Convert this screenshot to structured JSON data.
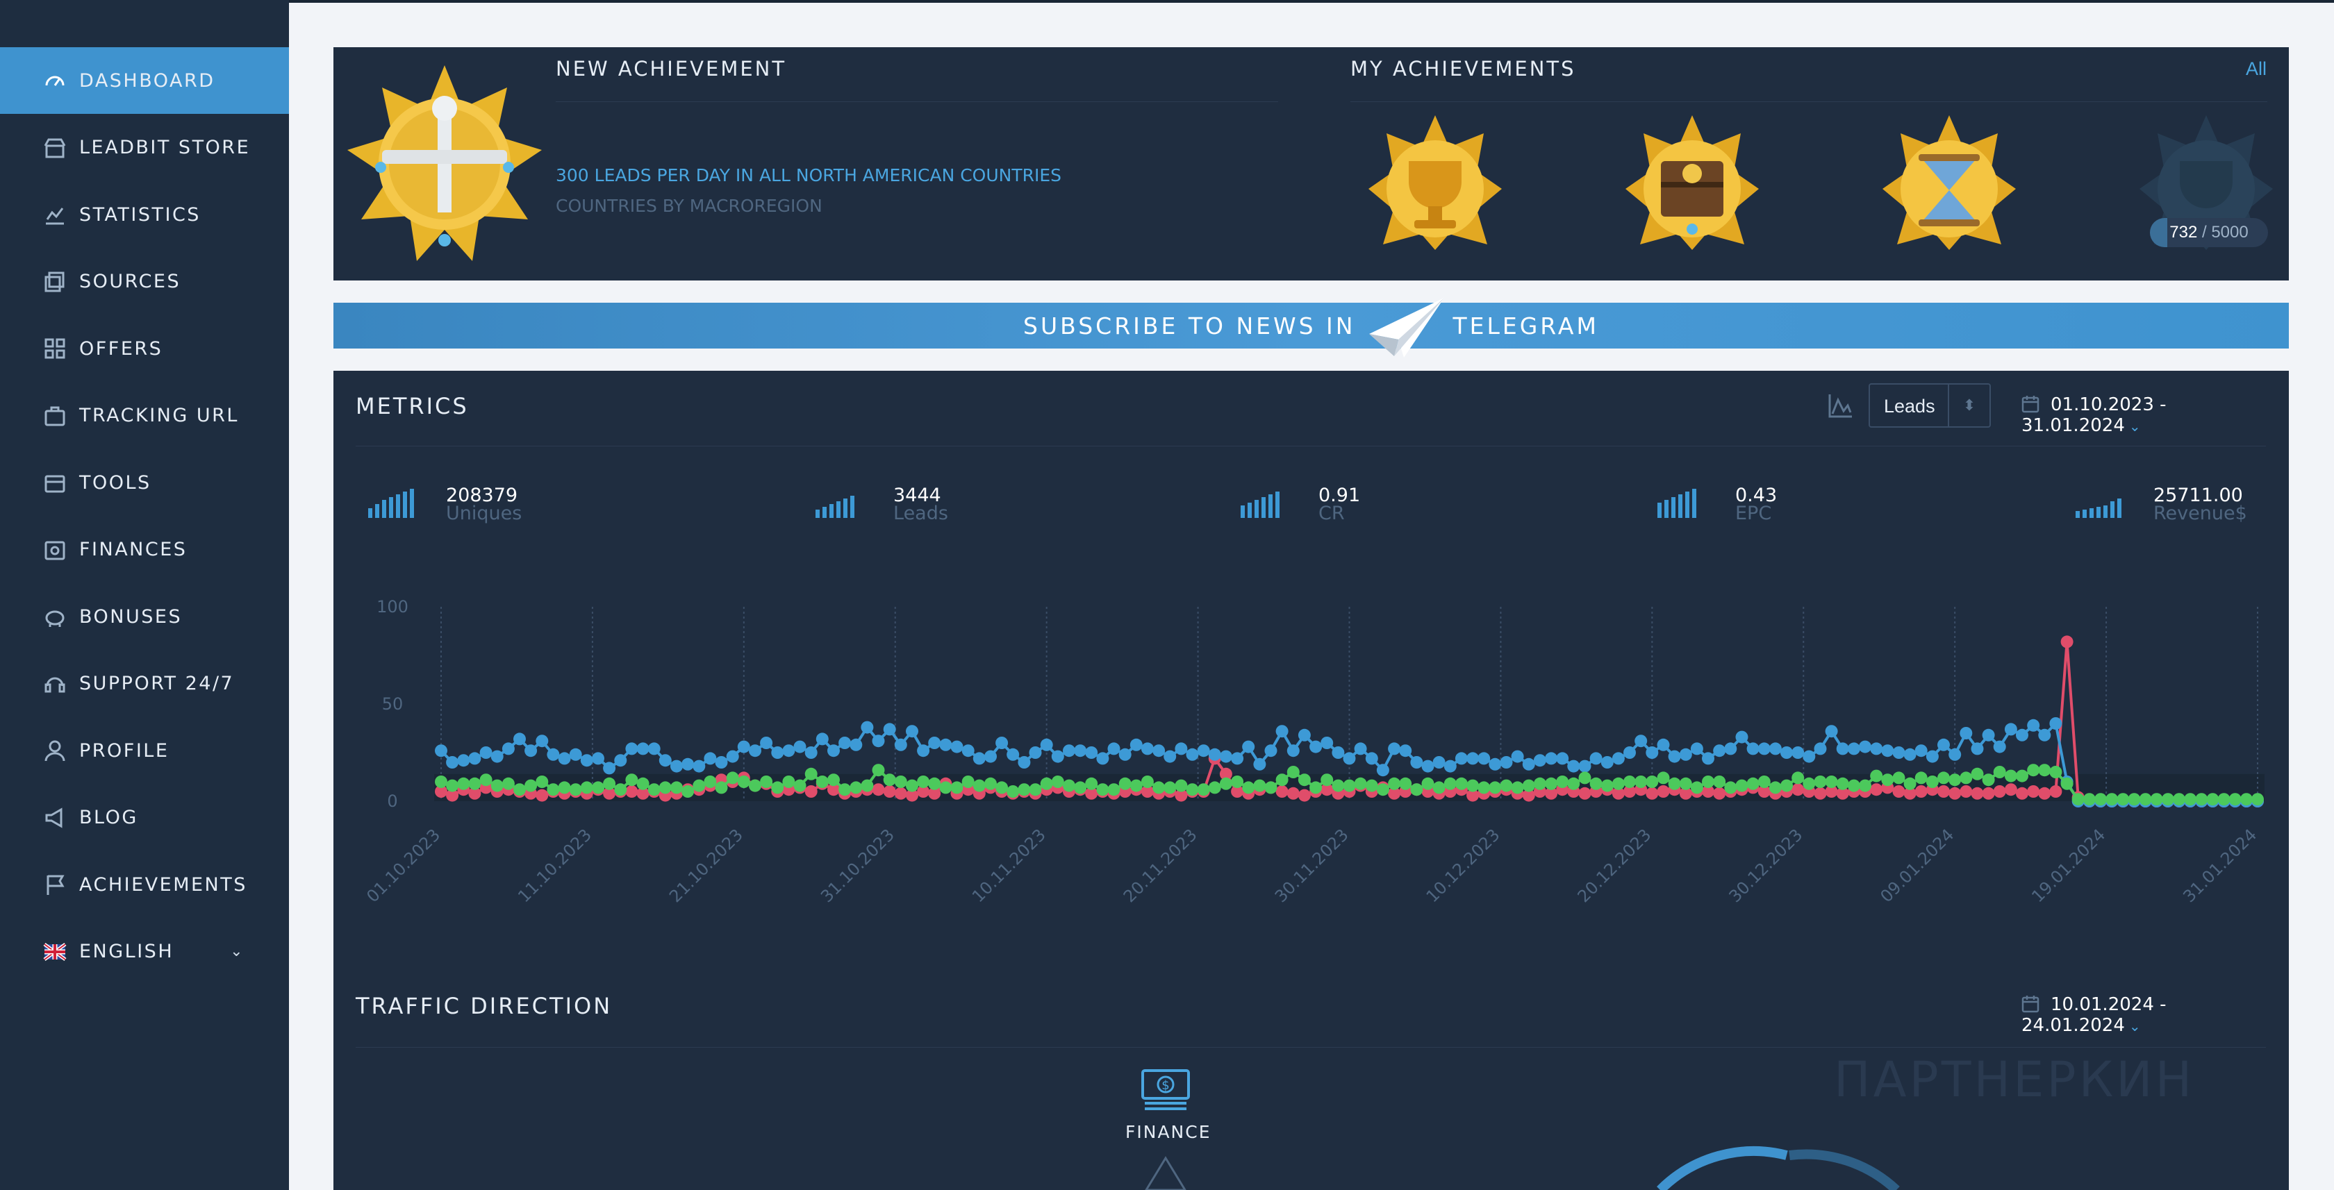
{
  "sidebar": {
    "items": [
      {
        "label": "DASHBOARD",
        "icon": "gauge-icon",
        "active": true
      },
      {
        "label": "LEADBIT STORE",
        "icon": "store-icon"
      },
      {
        "label": "STATISTICS",
        "icon": "chart-line-icon"
      },
      {
        "label": "SOURCES",
        "icon": "layers-icon"
      },
      {
        "label": "OFFERS",
        "icon": "grid-icon"
      },
      {
        "label": "TRACKING URL",
        "icon": "briefcase-icon"
      },
      {
        "label": "TOOLS",
        "icon": "toolbox-icon"
      },
      {
        "label": "FINANCES",
        "icon": "wallet-icon"
      },
      {
        "label": "BONUSES",
        "icon": "piggy-bank-icon"
      },
      {
        "label": "SUPPORT 24/7",
        "icon": "support-icon"
      },
      {
        "label": "PROFILE",
        "icon": "user-icon"
      },
      {
        "label": "BLOG",
        "icon": "megaphone-icon"
      },
      {
        "label": "ACHIEVEMENTS",
        "icon": "flag-icon"
      },
      {
        "label": "ENGLISH",
        "icon": "uk-flag-icon"
      }
    ]
  },
  "achievements": {
    "new_title": "NEW ACHIEVEMENT",
    "new_desc": "300 LEADS PER DAY IN ALL NORTH AMERICAN COUNTRIES",
    "new_sub": "COUNTRIES BY MACROREGION",
    "my_title": "MY ACHIEVEMENTS",
    "all_link": "All",
    "progress_current": "732",
    "progress_sep": " / ",
    "progress_total": "5000",
    "progress_fraction": 0.1464
  },
  "telegram": {
    "left": "SUBSCRIBE TO NEWS IN",
    "right": "TELEGRAM"
  },
  "metrics": {
    "title": "METRICS",
    "selector_value": "Leads",
    "date_range": "01.10.2023 - 31.01.2024",
    "stats": [
      {
        "value": "208379",
        "label": "Uniques"
      },
      {
        "value": "3444",
        "label": "Leads"
      },
      {
        "value": "0.91",
        "label": "CR"
      },
      {
        "value": "0.43",
        "label": "EPC"
      },
      {
        "value": "25711.00",
        "label": "Revenue$"
      }
    ]
  },
  "traffic": {
    "title": "TRAFFIC DIRECTION",
    "date_range": "10.01.2024 - 24.01.2024",
    "category": "FINANCE"
  },
  "watermark": "ПАРТНЕРКИН",
  "colors": {
    "accent": "#3f93cf",
    "sidebar": "#1e2d40",
    "panel": "#1f2d40",
    "series_blue": "#3d9ad6",
    "series_green": "#4cc95c",
    "series_red": "#e04d6a"
  },
  "chart_data": {
    "type": "scatter",
    "ylim": [
      0,
      100
    ],
    "y_ticks": [
      "0",
      "50",
      "100"
    ],
    "x_ticks": [
      "01.10.2023",
      "11.10.2023",
      "21.10.2023",
      "31.10.2023",
      "10.11.2023",
      "20.11.2023",
      "30.11.2023",
      "10.12.2023",
      "20.12.2023",
      "30.12.2023",
      "09.01.2024",
      "19.01.2024",
      "31.01.2024"
    ],
    "x_days": 123,
    "series": [
      {
        "color": "blue",
        "values": [
          26,
          20,
          21,
          22,
          25,
          23,
          27,
          32,
          26,
          31,
          24,
          22,
          24,
          21,
          22,
          17,
          21,
          27,
          27,
          27,
          21,
          18,
          19,
          18,
          22,
          20,
          23,
          28,
          26,
          30,
          25,
          26,
          28,
          25,
          32,
          26,
          30,
          29,
          38,
          31,
          37,
          29,
          36,
          26,
          30,
          29,
          28,
          26,
          22,
          23,
          30,
          24,
          20,
          25,
          29,
          23,
          26,
          26,
          25,
          22,
          27,
          24,
          29,
          27,
          26,
          23,
          27,
          24,
          26,
          24,
          23,
          22,
          28,
          19,
          26,
          36,
          26,
          34,
          28,
          30,
          25,
          22,
          27,
          22,
          16,
          27,
          26,
          20,
          18,
          20,
          18,
          22,
          22,
          22,
          19,
          20,
          23,
          19,
          21,
          22,
          22,
          18,
          18,
          22,
          20,
          22,
          25,
          31,
          25,
          29,
          23,
          24,
          27,
          22,
          26,
          27,
          33,
          27,
          27,
          27,
          25,
          25,
          23,
          27,
          36,
          27,
          27,
          28,
          27,
          26,
          25,
          24,
          26,
          23,
          29,
          24,
          35,
          27,
          34,
          28,
          37,
          34,
          39,
          34,
          40,
          10,
          0,
          0,
          0,
          0,
          0,
          0,
          0,
          0,
          0,
          0,
          0,
          0,
          0,
          0,
          0,
          0,
          0
        ]
      },
      {
        "color": "green",
        "values": [
          10,
          8,
          9,
          9,
          11,
          8,
          9,
          6,
          8,
          10,
          6,
          7,
          6,
          7,
          7,
          9,
          6,
          11,
          9,
          6,
          7,
          7,
          5,
          8,
          10,
          7,
          12,
          10,
          8,
          10,
          7,
          10,
          8,
          14,
          10,
          11,
          6,
          7,
          8,
          16,
          11,
          10,
          8,
          10,
          9,
          7,
          7,
          10,
          8,
          9,
          7,
          5,
          6,
          6,
          9,
          10,
          8,
          7,
          9,
          6,
          6,
          9,
          8,
          10,
          7,
          7,
          8,
          6,
          6,
          7,
          9,
          10,
          7,
          8,
          7,
          11,
          15,
          11,
          7,
          11,
          8,
          8,
          9,
          8,
          6,
          9,
          9,
          6,
          9,
          7,
          9,
          9,
          8,
          7,
          7,
          8,
          7,
          8,
          9,
          9,
          10,
          9,
          12,
          9,
          8,
          9,
          10,
          10,
          10,
          12,
          9,
          9,
          7,
          10,
          10,
          7,
          8,
          9,
          10,
          7,
          8,
          12,
          9,
          10,
          10,
          9,
          8,
          8,
          13,
          11,
          12,
          9,
          12,
          10,
          12,
          11,
          12,
          14,
          11,
          15,
          13,
          13,
          16,
          16,
          15,
          9,
          1,
          1,
          1,
          1,
          1,
          1,
          1,
          1,
          1,
          1,
          1,
          1,
          1,
          1,
          1,
          1,
          1
        ]
      },
      {
        "color": "red",
        "values": [
          5,
          3,
          6,
          4,
          7,
          5,
          6,
          5,
          4,
          3,
          5,
          4,
          5,
          4,
          6,
          4,
          5,
          5,
          4,
          5,
          3,
          4,
          6,
          6,
          8,
          11,
          10,
          12,
          8,
          9,
          5,
          6,
          7,
          5,
          9,
          6,
          4,
          5,
          6,
          6,
          5,
          4,
          3,
          5,
          4,
          9,
          4,
          6,
          4,
          7,
          5,
          4,
          5,
          4,
          6,
          7,
          5,
          6,
          4,
          5,
          4,
          5,
          6,
          5,
          4,
          5,
          3,
          5,
          5,
          22,
          14,
          5,
          4,
          6,
          7,
          5,
          4,
          3,
          5,
          6,
          4,
          5,
          8,
          5,
          7,
          4,
          5,
          6,
          5,
          4,
          5,
          6,
          3,
          4,
          5,
          6,
          4,
          3,
          5,
          4,
          6,
          5,
          4,
          5,
          6,
          4,
          5,
          6,
          4,
          5,
          6,
          4,
          5,
          5,
          4,
          5,
          6,
          7,
          5,
          4,
          5,
          6,
          5,
          4,
          5,
          4,
          5,
          5,
          6,
          7,
          5,
          4,
          5,
          6,
          5,
          4,
          5,
          4,
          4,
          5,
          6,
          4,
          5,
          4,
          5,
          82,
          2,
          0,
          0,
          0,
          0,
          0,
          0,
          0,
          0,
          0,
          0,
          0,
          0,
          0,
          0,
          0,
          0
        ]
      }
    ]
  }
}
